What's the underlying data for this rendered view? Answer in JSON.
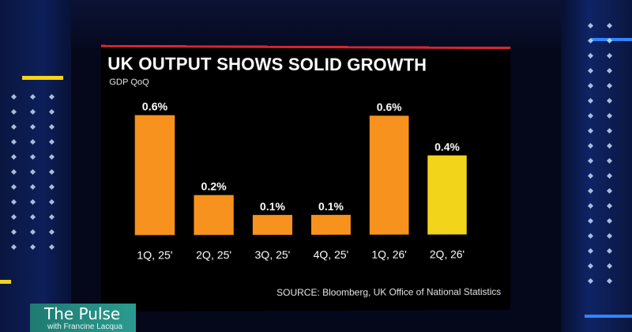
{
  "chart_data": {
    "type": "bar",
    "title": "UK OUTPUT SHOWS SOLID GROWTH",
    "subtitle": "GDP QoQ",
    "categories": [
      "1Q, 25'",
      "2Q, 25'",
      "3Q, 25'",
      "4Q, 25'",
      "1Q, 26'",
      "2Q, 26'"
    ],
    "values": [
      0.6,
      0.2,
      0.1,
      0.1,
      0.6,
      0.4
    ],
    "data_labels": [
      "0.6%",
      "0.2%",
      "0.1%",
      "0.1%",
      "0.6%",
      "0.4%"
    ],
    "bar_colors": [
      "#f7921e",
      "#f7921e",
      "#f7921e",
      "#f7921e",
      "#f7921e",
      "#f2d41a"
    ],
    "ylim": [
      0,
      0.7
    ],
    "grid": false,
    "source": "SOURCE: Bloomberg, UK Office of National Statistics"
  },
  "broadcast": {
    "show_title": "The Pulse",
    "show_subtitle": "with Francine Lacqua"
  },
  "colors": {
    "accent_red": "#d8262f",
    "studio_blue": "#0d1f5a",
    "brand_teal": "#2b9b8f"
  }
}
